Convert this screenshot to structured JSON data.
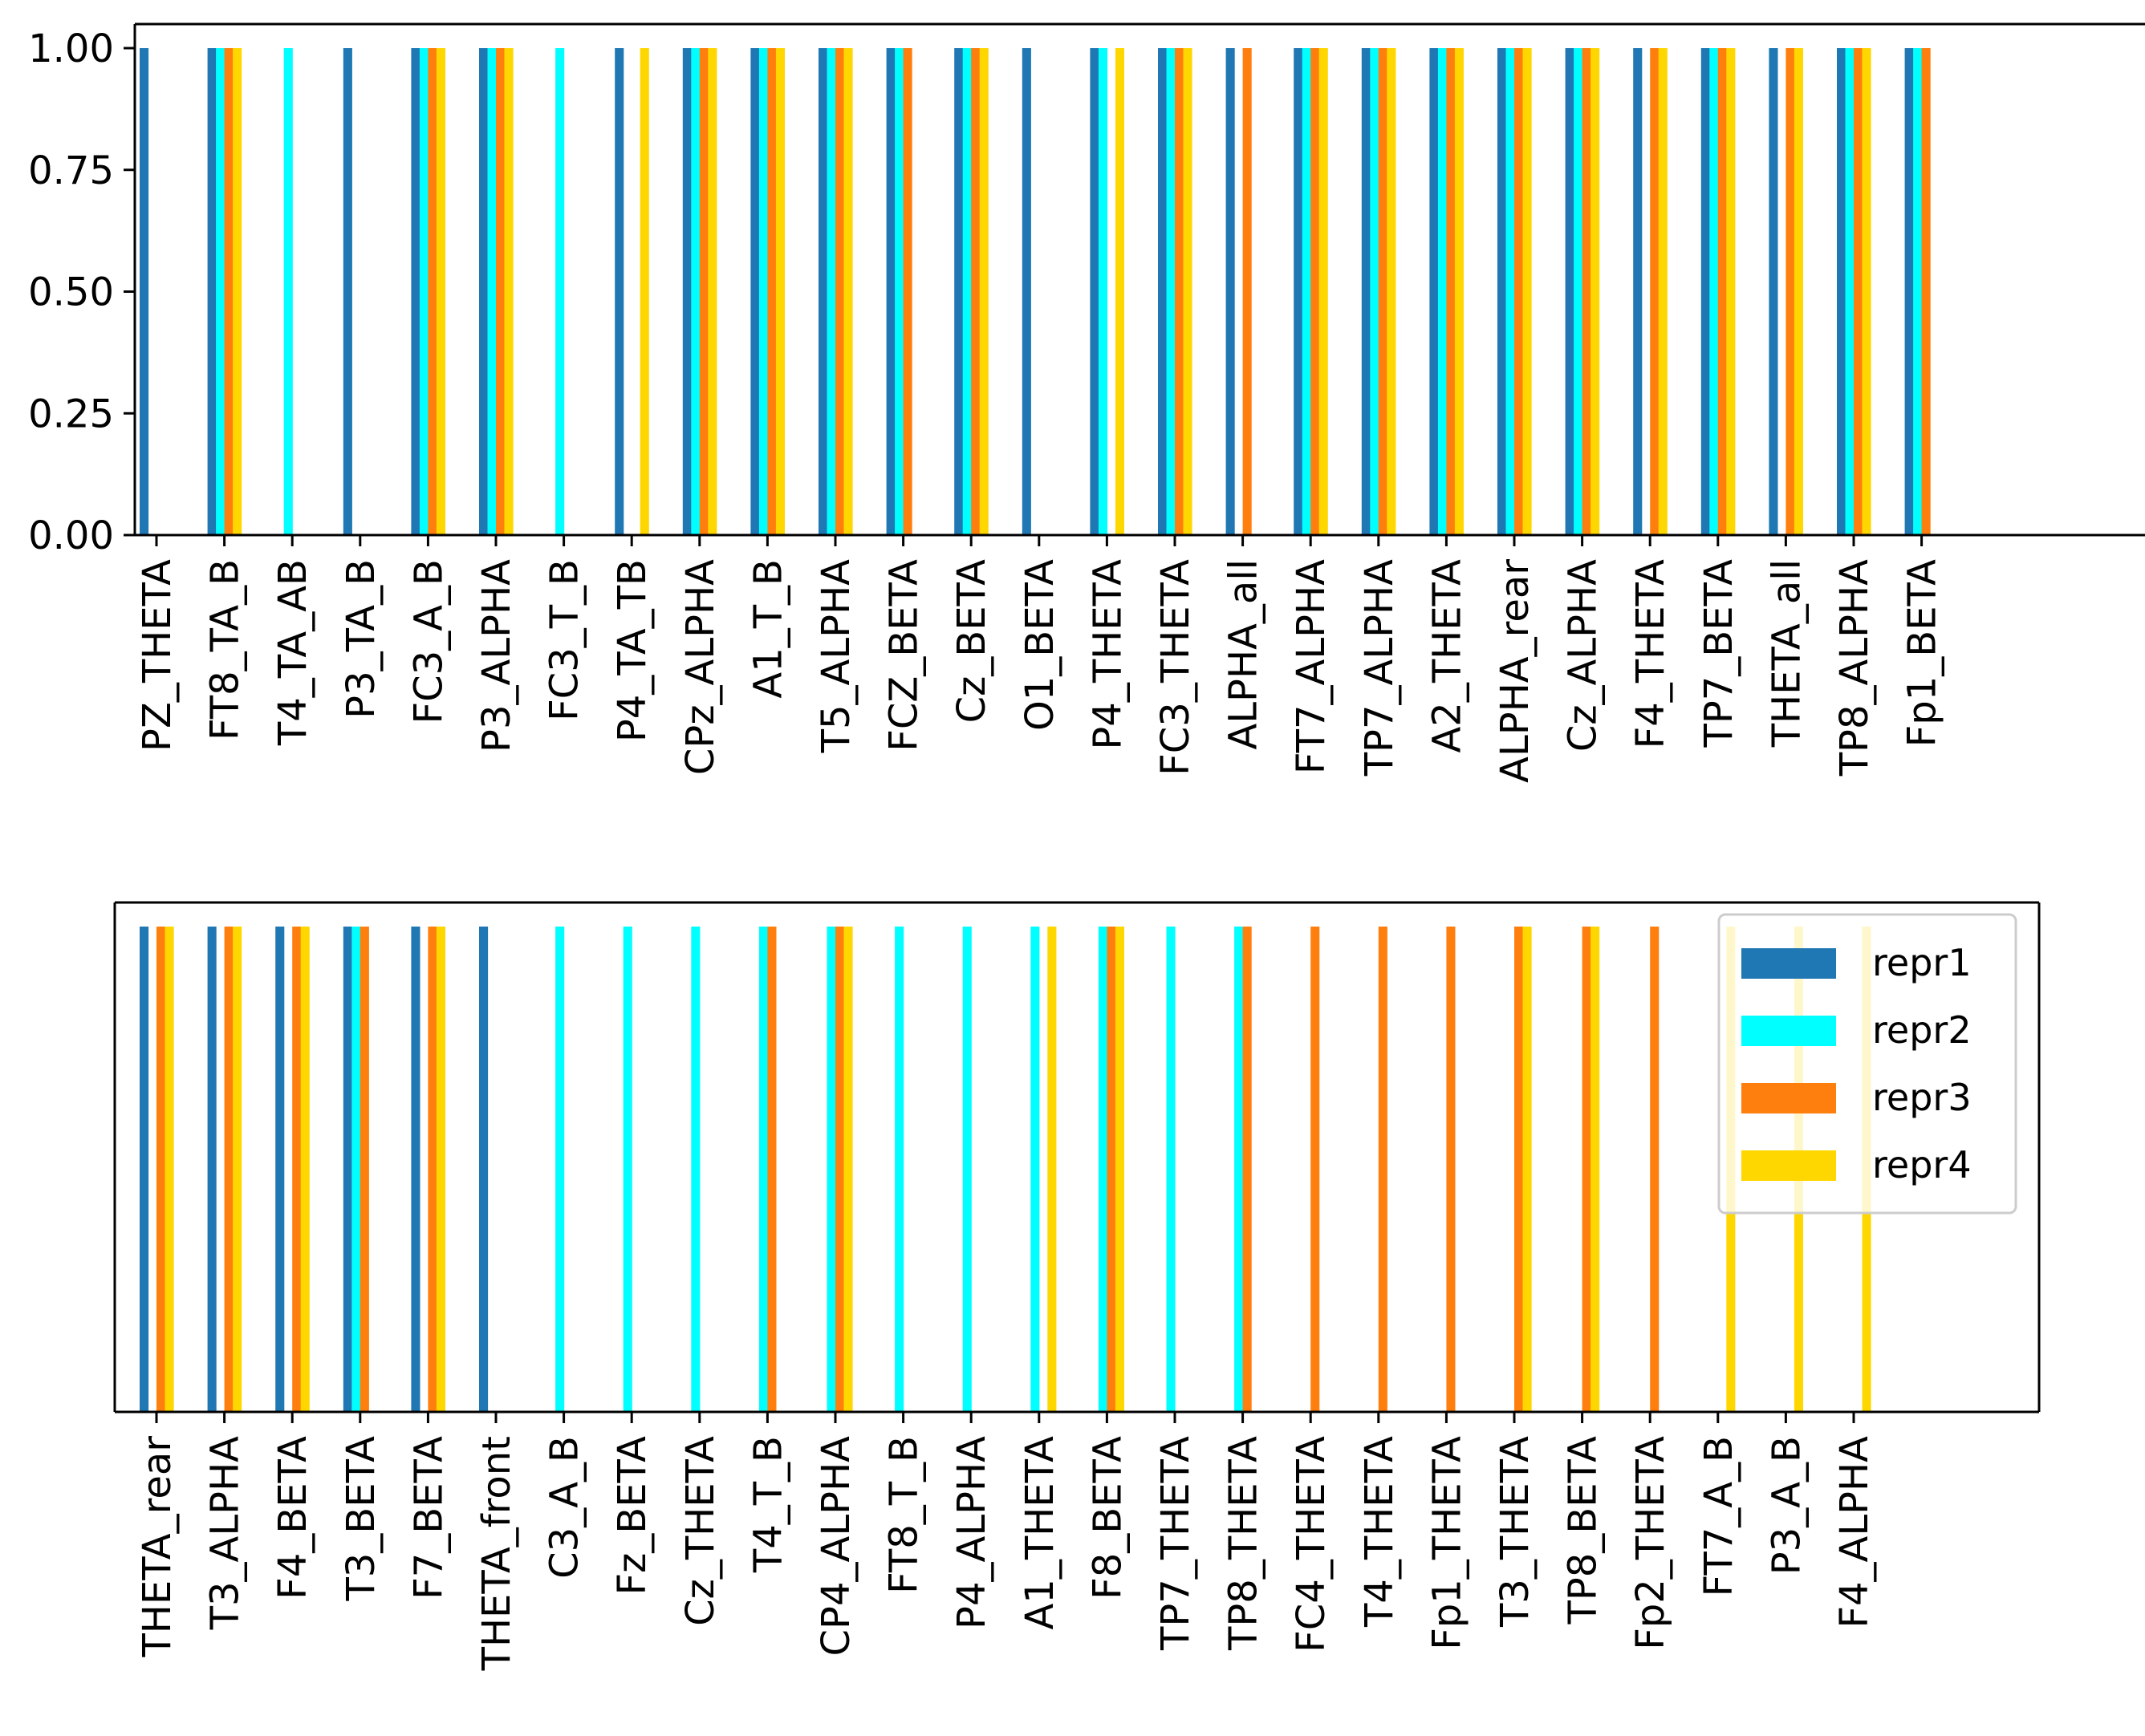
{
  "chart_data": {
    "type": "bar",
    "legend": {
      "location": "upper-right (bottom panel)",
      "entries": [
        {
          "name": "repr1",
          "color": "#1f77b4"
        },
        {
          "name": "repr2",
          "color": "#00ffff"
        },
        {
          "name": "repr3",
          "color": "#ff7f0e"
        },
        {
          "name": "repr4",
          "color": "#ffd700"
        }
      ]
    },
    "panels": [
      {
        "ylim": [
          0,
          1.0
        ],
        "yticks": [
          "0.00",
          "0.25",
          "0.50",
          "0.75",
          "1.00"
        ],
        "categories": [
          "PZ_THETA",
          "FT8_TA_B",
          "T4_TA_AB",
          "P3_TA_B",
          "FC3_A_B",
          "P3_ALPHA",
          "FC3_T_B",
          "P4_TA_TB",
          "CPz_ALPHA",
          "A1_T_B",
          "T5_ALPHA",
          "FCZ_BETA",
          "Cz_BETA",
          "O1_BETA",
          "P4_THETA",
          "FC3_THETA",
          "ALPHA_all",
          "FT7_ALPHA",
          "TP7_ALPHA",
          "A2_THETA",
          "ALPHA_rear",
          "Cz_ALPHA",
          "F4_THETA",
          "TP7_BETA",
          "THETA_all",
          "TP8_ALPHA",
          "Fp1_BETA"
        ],
        "series": [
          {
            "name": "repr1",
            "values": [
              1,
              1,
              0,
              1,
              1,
              1,
              0,
              1,
              1,
              1,
              1,
              1,
              1,
              1,
              1,
              1,
              1,
              1,
              1,
              1,
              1,
              1,
              1,
              1,
              1,
              1,
              1
            ]
          },
          {
            "name": "repr2",
            "values": [
              0,
              1,
              1,
              0,
              1,
              1,
              1,
              0,
              1,
              1,
              1,
              1,
              1,
              0,
              1,
              1,
              0,
              1,
              1,
              1,
              1,
              1,
              0,
              1,
              0,
              1,
              1
            ]
          },
          {
            "name": "repr3",
            "values": [
              0,
              1,
              0,
              0,
              1,
              1,
              0,
              0,
              1,
              1,
              1,
              1,
              1,
              0,
              0,
              1,
              1,
              1,
              1,
              1,
              1,
              1,
              1,
              1,
              1,
              1,
              1
            ]
          },
          {
            "name": "repr4",
            "values": [
              0,
              1,
              0,
              0,
              1,
              1,
              0,
              1,
              1,
              1,
              1,
              0,
              1,
              0,
              1,
              1,
              0,
              1,
              1,
              1,
              1,
              1,
              1,
              1,
              1,
              1,
              0
            ]
          }
        ]
      },
      {
        "ylim": [
          0,
          1.0
        ],
        "yticks": [],
        "categories": [
          "THETA_rear",
          "T3_ALPHA",
          "F4_BETA",
          "T3_BETA",
          "F7_BETA",
          "THETA_front",
          "C3_A_B",
          "Fz_BETA",
          "Cz_THETA",
          "T4_T_B",
          "CP4_ALPHA",
          "FT8_T_B",
          "P4_ALPHA",
          "A1_THETA",
          "F8_BETA",
          "TP7_THETA",
          "TP8_THETA",
          "FC4_THETA",
          "T4_THETA",
          "Fp1_THETA",
          "T3_THETA",
          "TP8_BETA",
          "Fp2_THETA",
          "FT7_A_B",
          "P3_A_B",
          "F4_ALPHA"
        ],
        "series": [
          {
            "name": "repr1",
            "values": [
              1,
              1,
              1,
              1,
              1,
              1,
              0,
              0,
              0,
              0,
              0,
              0,
              0,
              0,
              0,
              0,
              0,
              0,
              0,
              0,
              0,
              0,
              0,
              0,
              0,
              0
            ]
          },
          {
            "name": "repr2",
            "values": [
              0,
              0,
              0,
              1,
              0,
              0,
              1,
              1,
              1,
              1,
              1,
              1,
              1,
              1,
              1,
              1,
              1,
              0,
              0,
              0,
              0,
              0,
              0,
              0,
              0,
              0
            ]
          },
          {
            "name": "repr3",
            "values": [
              1,
              1,
              1,
              1,
              1,
              0,
              0,
              0,
              0,
              1,
              1,
              0,
              0,
              0,
              1,
              0,
              1,
              1,
              1,
              1,
              1,
              1,
              1,
              0,
              0,
              0
            ]
          },
          {
            "name": "repr4",
            "values": [
              1,
              1,
              1,
              0,
              1,
              0,
              0,
              0,
              0,
              0,
              1,
              0,
              0,
              1,
              1,
              0,
              0,
              0,
              0,
              0,
              1,
              1,
              0,
              1,
              1,
              1
            ]
          }
        ]
      }
    ]
  }
}
